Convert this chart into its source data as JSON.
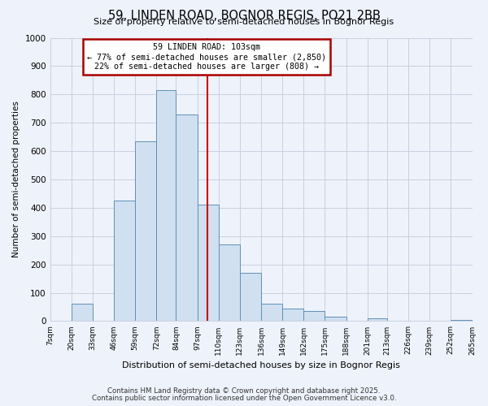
{
  "title": "59, LINDEN ROAD, BOGNOR REGIS, PO21 2BB",
  "subtitle": "Size of property relative to semi-detached houses in Bognor Regis",
  "xlabel": "Distribution of semi-detached houses by size in Bognor Regis",
  "ylabel": "Number of semi-detached properties",
  "bins": [
    7,
    20,
    33,
    46,
    59,
    72,
    84,
    97,
    110,
    123,
    136,
    149,
    162,
    175,
    188,
    201,
    213,
    226,
    239,
    252,
    265
  ],
  "bin_labels": [
    "7sqm",
    "20sqm",
    "33sqm",
    "46sqm",
    "59sqm",
    "72sqm",
    "84sqm",
    "97sqm",
    "110sqm",
    "123sqm",
    "136sqm",
    "149sqm",
    "162sqm",
    "175sqm",
    "188sqm",
    "201sqm",
    "213sqm",
    "226sqm",
    "239sqm",
    "252sqm",
    "265sqm"
  ],
  "counts": [
    0,
    60,
    0,
    425,
    635,
    815,
    730,
    410,
    270,
    170,
    60,
    45,
    35,
    15,
    0,
    10,
    0,
    0,
    0,
    5
  ],
  "bar_color": "#d0e0f0",
  "bar_edge_color": "#6090b8",
  "vline_x": 103,
  "vline_color": "#cc0000",
  "annotation_title": "59 LINDEN ROAD: 103sqm",
  "annotation_line1": "← 77% of semi-detached houses are smaller (2,850)",
  "annotation_line2": "22% of semi-detached houses are larger (808) →",
  "annotation_box_color": "#aa0000",
  "annotation_bg": "#ffffff",
  "ylim": [
    0,
    1000
  ],
  "yticks": [
    0,
    100,
    200,
    300,
    400,
    500,
    600,
    700,
    800,
    900,
    1000
  ],
  "footer1": "Contains HM Land Registry data © Crown copyright and database right 2025.",
  "footer2": "Contains public sector information licensed under the Open Government Licence v3.0.",
  "bg_color": "#eef2fa",
  "grid_color": "#c8d0e0"
}
